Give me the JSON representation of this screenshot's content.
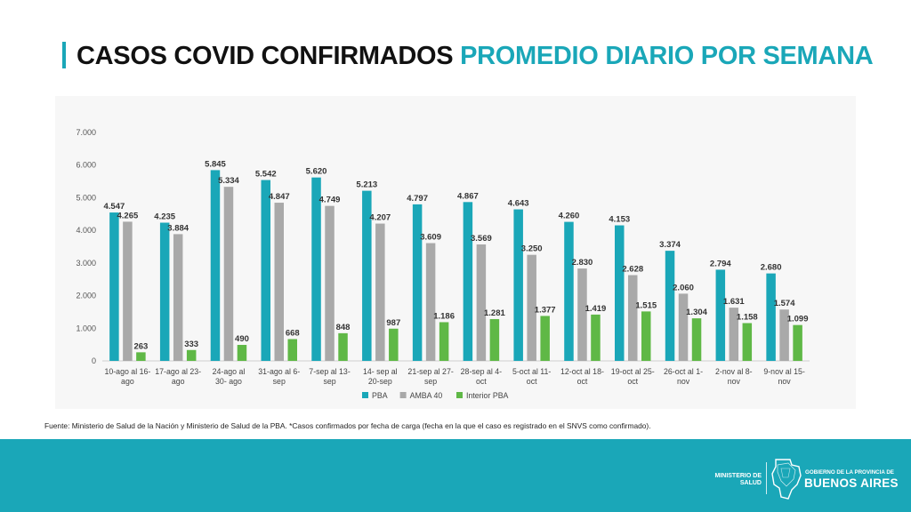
{
  "header": {
    "title_main": "CASOS COVID CONFIRMADOS",
    "title_accent": "PROMEDIO DIARIO POR SEMANA"
  },
  "chart_data": {
    "type": "bar",
    "categories": [
      [
        "10-ago al 16-",
        "ago"
      ],
      [
        "17-ago al 23-",
        "ago"
      ],
      [
        "24-ago al",
        "30- ago"
      ],
      [
        "31-ago al 6-",
        "sep"
      ],
      [
        "7-sep al 13-",
        "sep"
      ],
      [
        "14- sep al",
        "20-sep"
      ],
      [
        "21-sep al 27-",
        "sep"
      ],
      [
        "28-sep al 4-",
        "oct"
      ],
      [
        "5-oct al 11-",
        "oct"
      ],
      [
        "12-oct al 18-",
        "oct"
      ],
      [
        "19-oct al 25-",
        "oct"
      ],
      [
        "26-oct al 1-",
        "nov"
      ],
      [
        "2-nov al 8-",
        "nov"
      ],
      [
        "9-nov al 15-",
        "nov"
      ]
    ],
    "series": [
      {
        "name": "PBA",
        "color": "#1aa7b8",
        "values": [
          4547,
          4235,
          5845,
          5542,
          5620,
          5213,
          4797,
          4867,
          4643,
          4260,
          4153,
          3374,
          2794,
          2680
        ],
        "labels": [
          "4.547",
          "4.235",
          "5.845",
          "5.542",
          "5.620",
          "5.213",
          "4.797",
          "4.867",
          "4.643",
          "4.260",
          "4.153",
          "3.374",
          "2.794",
          "2.680"
        ]
      },
      {
        "name": "AMBA 40",
        "color": "#a9a9a9",
        "values": [
          4265,
          3884,
          5334,
          4847,
          4749,
          4207,
          3609,
          3569,
          3250,
          2830,
          2628,
          2060,
          1631,
          1574
        ],
        "labels": [
          "4.265",
          "3.884",
          "5.334",
          "4.847",
          "4.749",
          "4.207",
          "3.609",
          "3.569",
          "3.250",
          "2.830",
          "2.628",
          "2.060",
          "1.631",
          "1.574"
        ]
      },
      {
        "name": "Interior PBA",
        "color": "#5fb846",
        "values": [
          263,
          333,
          490,
          668,
          848,
          987,
          1186,
          1281,
          1377,
          1419,
          1515,
          1304,
          1158,
          1099
        ],
        "labels": [
          "263",
          "333",
          "490",
          "668",
          "848",
          "987",
          "1.186",
          "1.281",
          "1.377",
          "1.419",
          "1.515",
          "1.304",
          "1.158",
          "1.099"
        ]
      }
    ],
    "ylim": [
      0,
      7000
    ],
    "yticks": [
      0,
      1000,
      2000,
      3000,
      4000,
      5000,
      6000,
      7000
    ],
    "ytick_labels": [
      "0",
      "1.000",
      "2.000",
      "3.000",
      "4.000",
      "5.000",
      "6.000",
      "7.000"
    ],
    "grid": false,
    "legend_position": "bottom-center"
  },
  "source_note": "Fuente: Ministerio de Salud de la Nación y Ministerio de Salud de la PBA. *Casos confirmados por fecha de carga (fecha en la que el caso es registrado en el SNVS como confirmado).",
  "footer": {
    "ministry_line1": "MINISTERIO DE",
    "ministry_line2": "SALUD",
    "gov_line1": "GOBIERNO DE LA PROVINCIA DE",
    "gov_line2": "BUENOS AIRES",
    "map_icon": "province-map-icon"
  }
}
